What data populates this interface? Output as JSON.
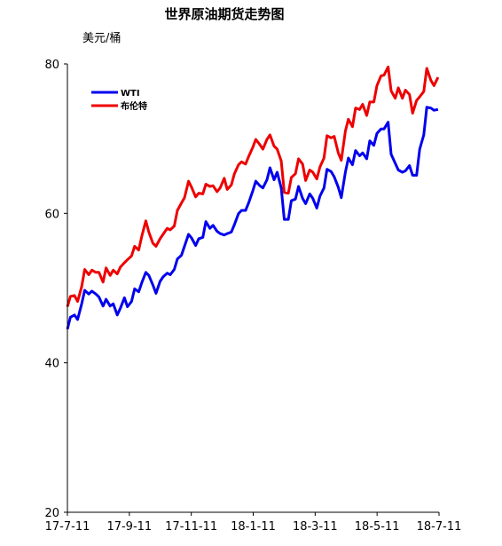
{
  "chart_data": {
    "type": "line",
    "title": "世界原油期货走势图",
    "ylabel": "美元/桶",
    "xlabel": "",
    "ylim": [
      20,
      80
    ],
    "yticks": [
      20,
      40,
      60,
      80
    ],
    "x_ticks": [
      "17-7-11",
      "17-9-11",
      "17-11-11",
      "18-1-11",
      "18-3-11",
      "18-5-11",
      "18-7-11"
    ],
    "x_domain": [
      "2017-07-11",
      "2018-07-11"
    ],
    "grid": false,
    "legend_position": "top-left",
    "series": [
      {
        "name": "WTI",
        "color": "#0000ee",
        "points": [
          [
            "2017-07-11",
            44.5
          ],
          [
            "2017-07-14",
            46.1
          ],
          [
            "2017-07-18",
            46.4
          ],
          [
            "2017-07-21",
            45.8
          ],
          [
            "2017-07-25",
            47.9
          ],
          [
            "2017-07-28",
            49.7
          ],
          [
            "2017-08-01",
            49.2
          ],
          [
            "2017-08-04",
            49.6
          ],
          [
            "2017-08-08",
            49.2
          ],
          [
            "2017-08-11",
            48.8
          ],
          [
            "2017-08-15",
            47.6
          ],
          [
            "2017-08-18",
            48.5
          ],
          [
            "2017-08-22",
            47.6
          ],
          [
            "2017-08-25",
            47.9
          ],
          [
            "2017-08-29",
            46.4
          ],
          [
            "2017-09-01",
            47.3
          ],
          [
            "2017-09-05",
            48.7
          ],
          [
            "2017-09-08",
            47.5
          ],
          [
            "2017-09-12",
            48.2
          ],
          [
            "2017-09-15",
            49.9
          ],
          [
            "2017-09-19",
            49.5
          ],
          [
            "2017-09-22",
            50.7
          ],
          [
            "2017-09-26",
            52.1
          ],
          [
            "2017-09-29",
            51.7
          ],
          [
            "2017-10-03",
            50.4
          ],
          [
            "2017-10-06",
            49.3
          ],
          [
            "2017-10-10",
            50.9
          ],
          [
            "2017-10-13",
            51.5
          ],
          [
            "2017-10-17",
            52.0
          ],
          [
            "2017-10-20",
            51.8
          ],
          [
            "2017-10-24",
            52.5
          ],
          [
            "2017-10-27",
            53.9
          ],
          [
            "2017-10-31",
            54.4
          ],
          [
            "2017-11-03",
            55.6
          ],
          [
            "2017-11-07",
            57.2
          ],
          [
            "2017-11-10",
            56.7
          ],
          [
            "2017-11-14",
            55.7
          ],
          [
            "2017-11-17",
            56.6
          ],
          [
            "2017-11-21",
            56.8
          ],
          [
            "2017-11-24",
            58.9
          ],
          [
            "2017-11-28",
            58.0
          ],
          [
            "2017-12-01",
            58.4
          ],
          [
            "2017-12-05",
            57.6
          ],
          [
            "2017-12-08",
            57.3
          ],
          [
            "2017-12-12",
            57.1
          ],
          [
            "2017-12-15",
            57.3
          ],
          [
            "2017-12-19",
            57.5
          ],
          [
            "2017-12-22",
            58.5
          ],
          [
            "2017-12-26",
            59.97
          ],
          [
            "2017-12-29",
            60.4
          ],
          [
            "2018-01-02",
            60.4
          ],
          [
            "2018-01-05",
            61.4
          ],
          [
            "2018-01-09",
            62.96
          ],
          [
            "2018-01-12",
            64.3
          ],
          [
            "2018-01-16",
            63.7
          ],
          [
            "2018-01-19",
            63.4
          ],
          [
            "2018-01-23",
            64.5
          ],
          [
            "2018-01-26",
            66.1
          ],
          [
            "2018-01-30",
            64.5
          ],
          [
            "2018-02-02",
            65.5
          ],
          [
            "2018-02-06",
            63.4
          ],
          [
            "2018-02-09",
            59.2
          ],
          [
            "2018-02-13",
            59.2
          ],
          [
            "2018-02-16",
            61.7
          ],
          [
            "2018-02-20",
            61.9
          ],
          [
            "2018-02-23",
            63.6
          ],
          [
            "2018-02-27",
            62.0
          ],
          [
            "2018-03-02",
            61.3
          ],
          [
            "2018-03-06",
            62.6
          ],
          [
            "2018-03-09",
            62.0
          ],
          [
            "2018-03-13",
            60.7
          ],
          [
            "2018-03-16",
            62.3
          ],
          [
            "2018-03-20",
            63.4
          ],
          [
            "2018-03-23",
            65.9
          ],
          [
            "2018-03-27",
            65.6
          ],
          [
            "2018-03-30",
            64.9
          ],
          [
            "2018-04-03",
            63.5
          ],
          [
            "2018-04-06",
            62.1
          ],
          [
            "2018-04-10",
            65.5
          ],
          [
            "2018-04-13",
            67.4
          ],
          [
            "2018-04-17",
            66.5
          ],
          [
            "2018-04-20",
            68.4
          ],
          [
            "2018-04-24",
            67.7
          ],
          [
            "2018-04-27",
            68.1
          ],
          [
            "2018-05-01",
            67.3
          ],
          [
            "2018-05-04",
            69.7
          ],
          [
            "2018-05-08",
            69.1
          ],
          [
            "2018-05-11",
            70.7
          ],
          [
            "2018-05-15",
            71.3
          ],
          [
            "2018-05-18",
            71.3
          ],
          [
            "2018-05-22",
            72.2
          ],
          [
            "2018-05-25",
            67.9
          ],
          [
            "2018-05-29",
            66.7
          ],
          [
            "2018-06-01",
            65.8
          ],
          [
            "2018-06-05",
            65.5
          ],
          [
            "2018-06-08",
            65.7
          ],
          [
            "2018-06-12",
            66.4
          ],
          [
            "2018-06-15",
            65.1
          ],
          [
            "2018-06-19",
            65.1
          ],
          [
            "2018-06-22",
            68.6
          ],
          [
            "2018-06-26",
            70.5
          ],
          [
            "2018-06-29",
            74.2
          ],
          [
            "2018-07-03",
            74.1
          ],
          [
            "2018-07-06",
            73.8
          ],
          [
            "2018-07-10",
            73.9
          ]
        ]
      },
      {
        "name": "布伦特",
        "color": "#ee0000",
        "points": [
          [
            "2017-07-11",
            47.5
          ],
          [
            "2017-07-14",
            48.9
          ],
          [
            "2017-07-18",
            49.0
          ],
          [
            "2017-07-21",
            48.2
          ],
          [
            "2017-07-25",
            50.2
          ],
          [
            "2017-07-28",
            52.5
          ],
          [
            "2017-08-01",
            51.8
          ],
          [
            "2017-08-04",
            52.4
          ],
          [
            "2017-08-08",
            52.1
          ],
          [
            "2017-08-11",
            52.1
          ],
          [
            "2017-08-15",
            50.8
          ],
          [
            "2017-08-18",
            52.7
          ],
          [
            "2017-08-22",
            51.7
          ],
          [
            "2017-08-25",
            52.4
          ],
          [
            "2017-08-29",
            51.9
          ],
          [
            "2017-09-01",
            52.8
          ],
          [
            "2017-09-05",
            53.4
          ],
          [
            "2017-09-08",
            53.8
          ],
          [
            "2017-09-12",
            54.3
          ],
          [
            "2017-09-15",
            55.6
          ],
          [
            "2017-09-19",
            55.1
          ],
          [
            "2017-09-22",
            56.9
          ],
          [
            "2017-09-26",
            59.0
          ],
          [
            "2017-09-29",
            57.5
          ],
          [
            "2017-10-03",
            56.0
          ],
          [
            "2017-10-06",
            55.6
          ],
          [
            "2017-10-10",
            56.6
          ],
          [
            "2017-10-13",
            57.2
          ],
          [
            "2017-10-17",
            58.0
          ],
          [
            "2017-10-20",
            57.8
          ],
          [
            "2017-10-24",
            58.3
          ],
          [
            "2017-10-27",
            60.4
          ],
          [
            "2017-10-31",
            61.4
          ],
          [
            "2017-11-03",
            62.1
          ],
          [
            "2017-11-07",
            64.3
          ],
          [
            "2017-11-10",
            63.5
          ],
          [
            "2017-11-14",
            62.2
          ],
          [
            "2017-11-17",
            62.7
          ],
          [
            "2017-11-21",
            62.6
          ],
          [
            "2017-11-24",
            63.9
          ],
          [
            "2017-11-28",
            63.6
          ],
          [
            "2017-12-01",
            63.7
          ],
          [
            "2017-12-05",
            62.9
          ],
          [
            "2017-12-08",
            63.4
          ],
          [
            "2017-12-12",
            64.7
          ],
          [
            "2017-12-15",
            63.2
          ],
          [
            "2017-12-19",
            63.8
          ],
          [
            "2017-12-22",
            65.3
          ],
          [
            "2017-12-26",
            66.5
          ],
          [
            "2017-12-29",
            66.9
          ],
          [
            "2018-01-02",
            66.6
          ],
          [
            "2018-01-05",
            67.6
          ],
          [
            "2018-01-09",
            68.8
          ],
          [
            "2018-01-12",
            69.9
          ],
          [
            "2018-01-16",
            69.2
          ],
          [
            "2018-01-19",
            68.6
          ],
          [
            "2018-01-23",
            69.9
          ],
          [
            "2018-01-26",
            70.5
          ],
          [
            "2018-01-30",
            69.0
          ],
          [
            "2018-02-02",
            68.6
          ],
          [
            "2018-02-06",
            67.0
          ],
          [
            "2018-02-09",
            62.8
          ],
          [
            "2018-02-13",
            62.7
          ],
          [
            "2018-02-16",
            64.8
          ],
          [
            "2018-02-20",
            65.3
          ],
          [
            "2018-02-23",
            67.3
          ],
          [
            "2018-02-27",
            66.6
          ],
          [
            "2018-03-02",
            64.4
          ],
          [
            "2018-03-06",
            65.8
          ],
          [
            "2018-03-09",
            65.5
          ],
          [
            "2018-03-13",
            64.6
          ],
          [
            "2018-03-16",
            66.2
          ],
          [
            "2018-03-20",
            67.4
          ],
          [
            "2018-03-23",
            70.4
          ],
          [
            "2018-03-27",
            70.1
          ],
          [
            "2018-03-30",
            70.3
          ],
          [
            "2018-04-03",
            68.1
          ],
          [
            "2018-04-06",
            67.1
          ],
          [
            "2018-04-10",
            71.0
          ],
          [
            "2018-04-13",
            72.6
          ],
          [
            "2018-04-17",
            71.6
          ],
          [
            "2018-04-20",
            74.1
          ],
          [
            "2018-04-24",
            73.9
          ],
          [
            "2018-04-27",
            74.6
          ],
          [
            "2018-05-01",
            73.1
          ],
          [
            "2018-05-04",
            74.9
          ],
          [
            "2018-05-08",
            74.9
          ],
          [
            "2018-05-11",
            77.1
          ],
          [
            "2018-05-15",
            78.4
          ],
          [
            "2018-05-18",
            78.5
          ],
          [
            "2018-05-22",
            79.6
          ],
          [
            "2018-05-25",
            76.4
          ],
          [
            "2018-05-29",
            75.4
          ],
          [
            "2018-06-01",
            76.8
          ],
          [
            "2018-06-05",
            75.4
          ],
          [
            "2018-06-08",
            76.5
          ],
          [
            "2018-06-12",
            75.9
          ],
          [
            "2018-06-15",
            73.4
          ],
          [
            "2018-06-19",
            75.1
          ],
          [
            "2018-06-22",
            75.6
          ],
          [
            "2018-06-26",
            76.3
          ],
          [
            "2018-06-29",
            79.4
          ],
          [
            "2018-07-03",
            77.8
          ],
          [
            "2018-07-06",
            77.1
          ],
          [
            "2018-07-10",
            78.2
          ]
        ]
      }
    ]
  }
}
